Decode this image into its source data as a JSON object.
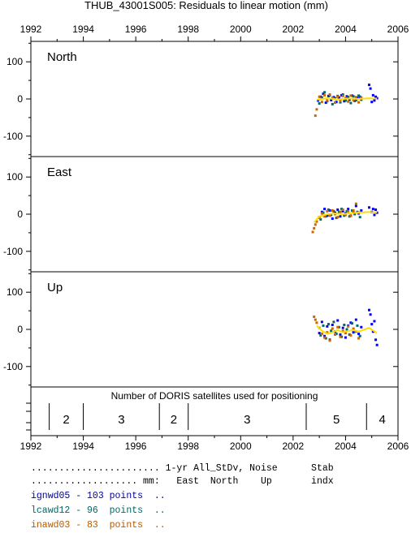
{
  "chart_data": {
    "type": "scatter",
    "title": "THUB_43001S005: Residuals to linear motion (mm)",
    "x_ticks": [
      "1992",
      "1994",
      "1996",
      "1998",
      "2000",
      "2002",
      "2004",
      "2006"
    ],
    "xlim": [
      1992,
      2006
    ],
    "panels": [
      {
        "name": "North",
        "ylim": [
          -155,
          155
        ],
        "y_ticks": [
          "100",
          "0",
          "-100"
        ],
        "series": [
          {
            "name": "ignwd05",
            "color": "#0000ff",
            "x": [
              2002.95,
              2003.05,
              2003.15,
              2003.25,
              2003.35,
              2003.45,
              2003.55,
              2003.65,
              2003.75,
              2003.85,
              2003.95,
              2004.05,
              2004.15,
              2004.25,
              2004.35,
              2004.45,
              2004.55,
              2004.9,
              2004.95,
              2005.0,
              2005.05,
              2005.1,
              2005.15,
              2005.2
            ],
            "y": [
              -4,
              6,
              14,
              -10,
              8,
              -3,
              5,
              -8,
              4,
              10,
              -6,
              7,
              -2,
              9,
              -5,
              3,
              6,
              38,
              28,
              -8,
              10,
              -4,
              6,
              2
            ]
          },
          {
            "name": "lcawd12",
            "color": "#006666",
            "x": [
              2003.0,
              2003.1,
              2003.2,
              2003.3,
              2003.4,
              2003.5,
              2003.6,
              2003.7,
              2003.8,
              2003.9,
              2004.0,
              2004.1,
              2004.2,
              2004.3,
              2004.4,
              2004.5,
              2004.6
            ],
            "y": [
              -12,
              4,
              18,
              -6,
              10,
              -14,
              2,
              8,
              -9,
              12,
              -4,
              5,
              -11,
              7,
              -3,
              9,
              -2
            ]
          },
          {
            "name": "inawd03",
            "color": "#cc6600",
            "x": [
              2002.85,
              2002.9,
              2003.0,
              2003.1,
              2003.2,
              2003.3,
              2003.4,
              2003.5,
              2003.6,
              2003.7,
              2003.8,
              2003.9,
              2004.0,
              2004.1,
              2004.2,
              2004.3,
              2004.4,
              2004.5,
              2004.6
            ],
            "y": [
              -45,
              -28,
              6,
              -8,
              10,
              -4,
              12,
              3,
              -10,
              6,
              -5,
              8,
              2,
              -7,
              9,
              -3,
              5,
              -9,
              4
            ]
          }
        ],
        "mean_line": {
          "x": [
            2002.9,
            2003.3,
            2003.7,
            2004.1,
            2004.5,
            2004.9,
            2005.2
          ],
          "y": [
            -2,
            2,
            -1,
            1,
            0,
            2,
            1
          ]
        }
      },
      {
        "name": "East",
        "ylim": [
          -155,
          155
        ],
        "y_ticks": [
          "100",
          "0",
          "-100"
        ],
        "series": [
          {
            "name": "ignwd05",
            "color": "#0000ff",
            "x": [
              2003.0,
              2003.1,
              2003.2,
              2003.3,
              2003.4,
              2003.5,
              2003.6,
              2003.7,
              2003.8,
              2003.9,
              2004.0,
              2004.1,
              2004.2,
              2004.3,
              2004.4,
              2004.5,
              2004.6,
              2004.9,
              2005.0,
              2005.05,
              2005.1,
              2005.15,
              2005.2
            ],
            "y": [
              -8,
              6,
              14,
              -4,
              10,
              -12,
              4,
              12,
              -6,
              8,
              2,
              14,
              -4,
              6,
              22,
              2,
              10,
              18,
              6,
              14,
              -2,
              12,
              4
            ]
          },
          {
            "name": "lcawd12",
            "color": "#006666",
            "x": [
              2003.05,
              2003.15,
              2003.25,
              2003.35,
              2003.45,
              2003.55,
              2003.65,
              2003.75,
              2003.85,
              2003.95,
              2004.05,
              2004.15,
              2004.25,
              2004.35,
              2004.45,
              2004.55
            ],
            "y": [
              -14,
              4,
              -6,
              12,
              -2,
              8,
              -10,
              6,
              14,
              -4,
              8,
              -6,
              10,
              0,
              6,
              -8
            ]
          },
          {
            "name": "inawd03",
            "color": "#cc6600",
            "x": [
              2002.75,
              2002.8,
              2002.85,
              2002.9,
              2003.0,
              2003.1,
              2003.2,
              2003.3,
              2003.4,
              2003.5,
              2003.6,
              2003.7,
              2003.8,
              2003.9,
              2004.0,
              2004.1,
              2004.2,
              2004.3,
              2004.4,
              2004.5
            ],
            "y": [
              -48,
              -38,
              -28,
              -20,
              -10,
              2,
              -6,
              8,
              -4,
              10,
              0,
              -8,
              6,
              12,
              -2,
              8,
              -4,
              10,
              28,
              4
            ]
          }
        ],
        "mean_line": {
          "x": [
            2002.8,
            2003.0,
            2003.3,
            2003.6,
            2003.9,
            2004.2,
            2004.5,
            2004.9,
            2005.2
          ],
          "y": [
            -22,
            -6,
            0,
            2,
            0,
            3,
            4,
            6,
            5
          ]
        }
      },
      {
        "name": "Up",
        "ylim": [
          -155,
          155
        ],
        "y_ticks": [
          "100",
          "0",
          "-100"
        ],
        "series": [
          {
            "name": "ignwd05",
            "color": "#0000ff",
            "x": [
              2003.0,
              2003.1,
              2003.2,
              2003.3,
              2003.4,
              2003.5,
              2003.6,
              2003.7,
              2003.8,
              2003.9,
              2004.0,
              2004.1,
              2004.2,
              2004.3,
              2004.4,
              2004.5,
              2004.6,
              2004.9,
              2004.95,
              2005.0,
              2005.05,
              2005.1,
              2005.15,
              2005.2
            ],
            "y": [
              -10,
              20,
              -18,
              8,
              -28,
              12,
              -6,
              24,
              -14,
              4,
              -22,
              10,
              18,
              -8,
              26,
              -12,
              6,
              52,
              40,
              14,
              -6,
              22,
              -28,
              -42
            ]
          },
          {
            "name": "lcawd12",
            "color": "#006666",
            "x": [
              2003.05,
              2003.15,
              2003.25,
              2003.35,
              2003.45,
              2003.55,
              2003.65,
              2003.75,
              2003.85,
              2003.95,
              2004.05,
              2004.15,
              2004.25,
              2004.35,
              2004.45,
              2004.55
            ],
            "y": [
              -16,
              10,
              -24,
              14,
              -4,
              20,
              -12,
              6,
              -20,
              12,
              0,
              -14,
              16,
              -6,
              10,
              -18
            ]
          },
          {
            "name": "inawd03",
            "color": "#cc6600",
            "x": [
              2002.8,
              2002.85,
              2002.9,
              2003.0,
              2003.1,
              2003.2,
              2003.3,
              2003.4,
              2003.5,
              2003.6,
              2003.7,
              2003.8,
              2003.9,
              2004.0,
              2004.1,
              2004.2,
              2004.3,
              2004.4,
              2004.5
            ],
            "y": [
              34,
              26,
              18,
              4,
              -12,
              -22,
              -8,
              -30,
              2,
              -14,
              6,
              -20,
              -4,
              -10,
              8,
              -16,
              2,
              -6,
              -24
            ]
          }
        ],
        "mean_line": {
          "x": [
            2002.9,
            2003.1,
            2003.3,
            2003.5,
            2003.7,
            2003.9,
            2004.1,
            2004.3,
            2004.5,
            2004.9,
            2005.2
          ],
          "y": [
            10,
            -4,
            -12,
            -8,
            -2,
            -8,
            -4,
            -2,
            -6,
            4,
            -10
          ]
        }
      }
    ],
    "satellites": {
      "label": "Number of DORIS satellites used for positioning",
      "boundaries": [
        1992.7,
        1994.0,
        1996.9,
        1998.0,
        2002.5,
        2004.8
      ],
      "segments": [
        {
          "label": "2",
          "from": 1992.7,
          "to": 1994.0
        },
        {
          "label": "3",
          "from": 1994.0,
          "to": 1996.9
        },
        {
          "label": "2",
          "from": 1996.9,
          "to": 1998.0
        },
        {
          "label": "3",
          "from": 1998.0,
          "to": 2002.5
        },
        {
          "label": "5",
          "from": 2002.5,
          "to": 2004.8
        },
        {
          "label": "4",
          "from": 2004.8,
          "to": 2006.0
        }
      ]
    }
  },
  "stats": {
    "header1": "....................... 1-yr All_StDv, Noise      Stab",
    "header2": "................... mm:   East  North    Up       indx",
    "rows": [
      {
        "text": "ignwd05 - 103 points  ..",
        "color": "#000099"
      },
      {
        "text": "lcawd12 - 96  points  ..",
        "color": "#006666"
      },
      {
        "text": "inawd03 - 83  points  ..",
        "color": "#b35900"
      }
    ]
  }
}
